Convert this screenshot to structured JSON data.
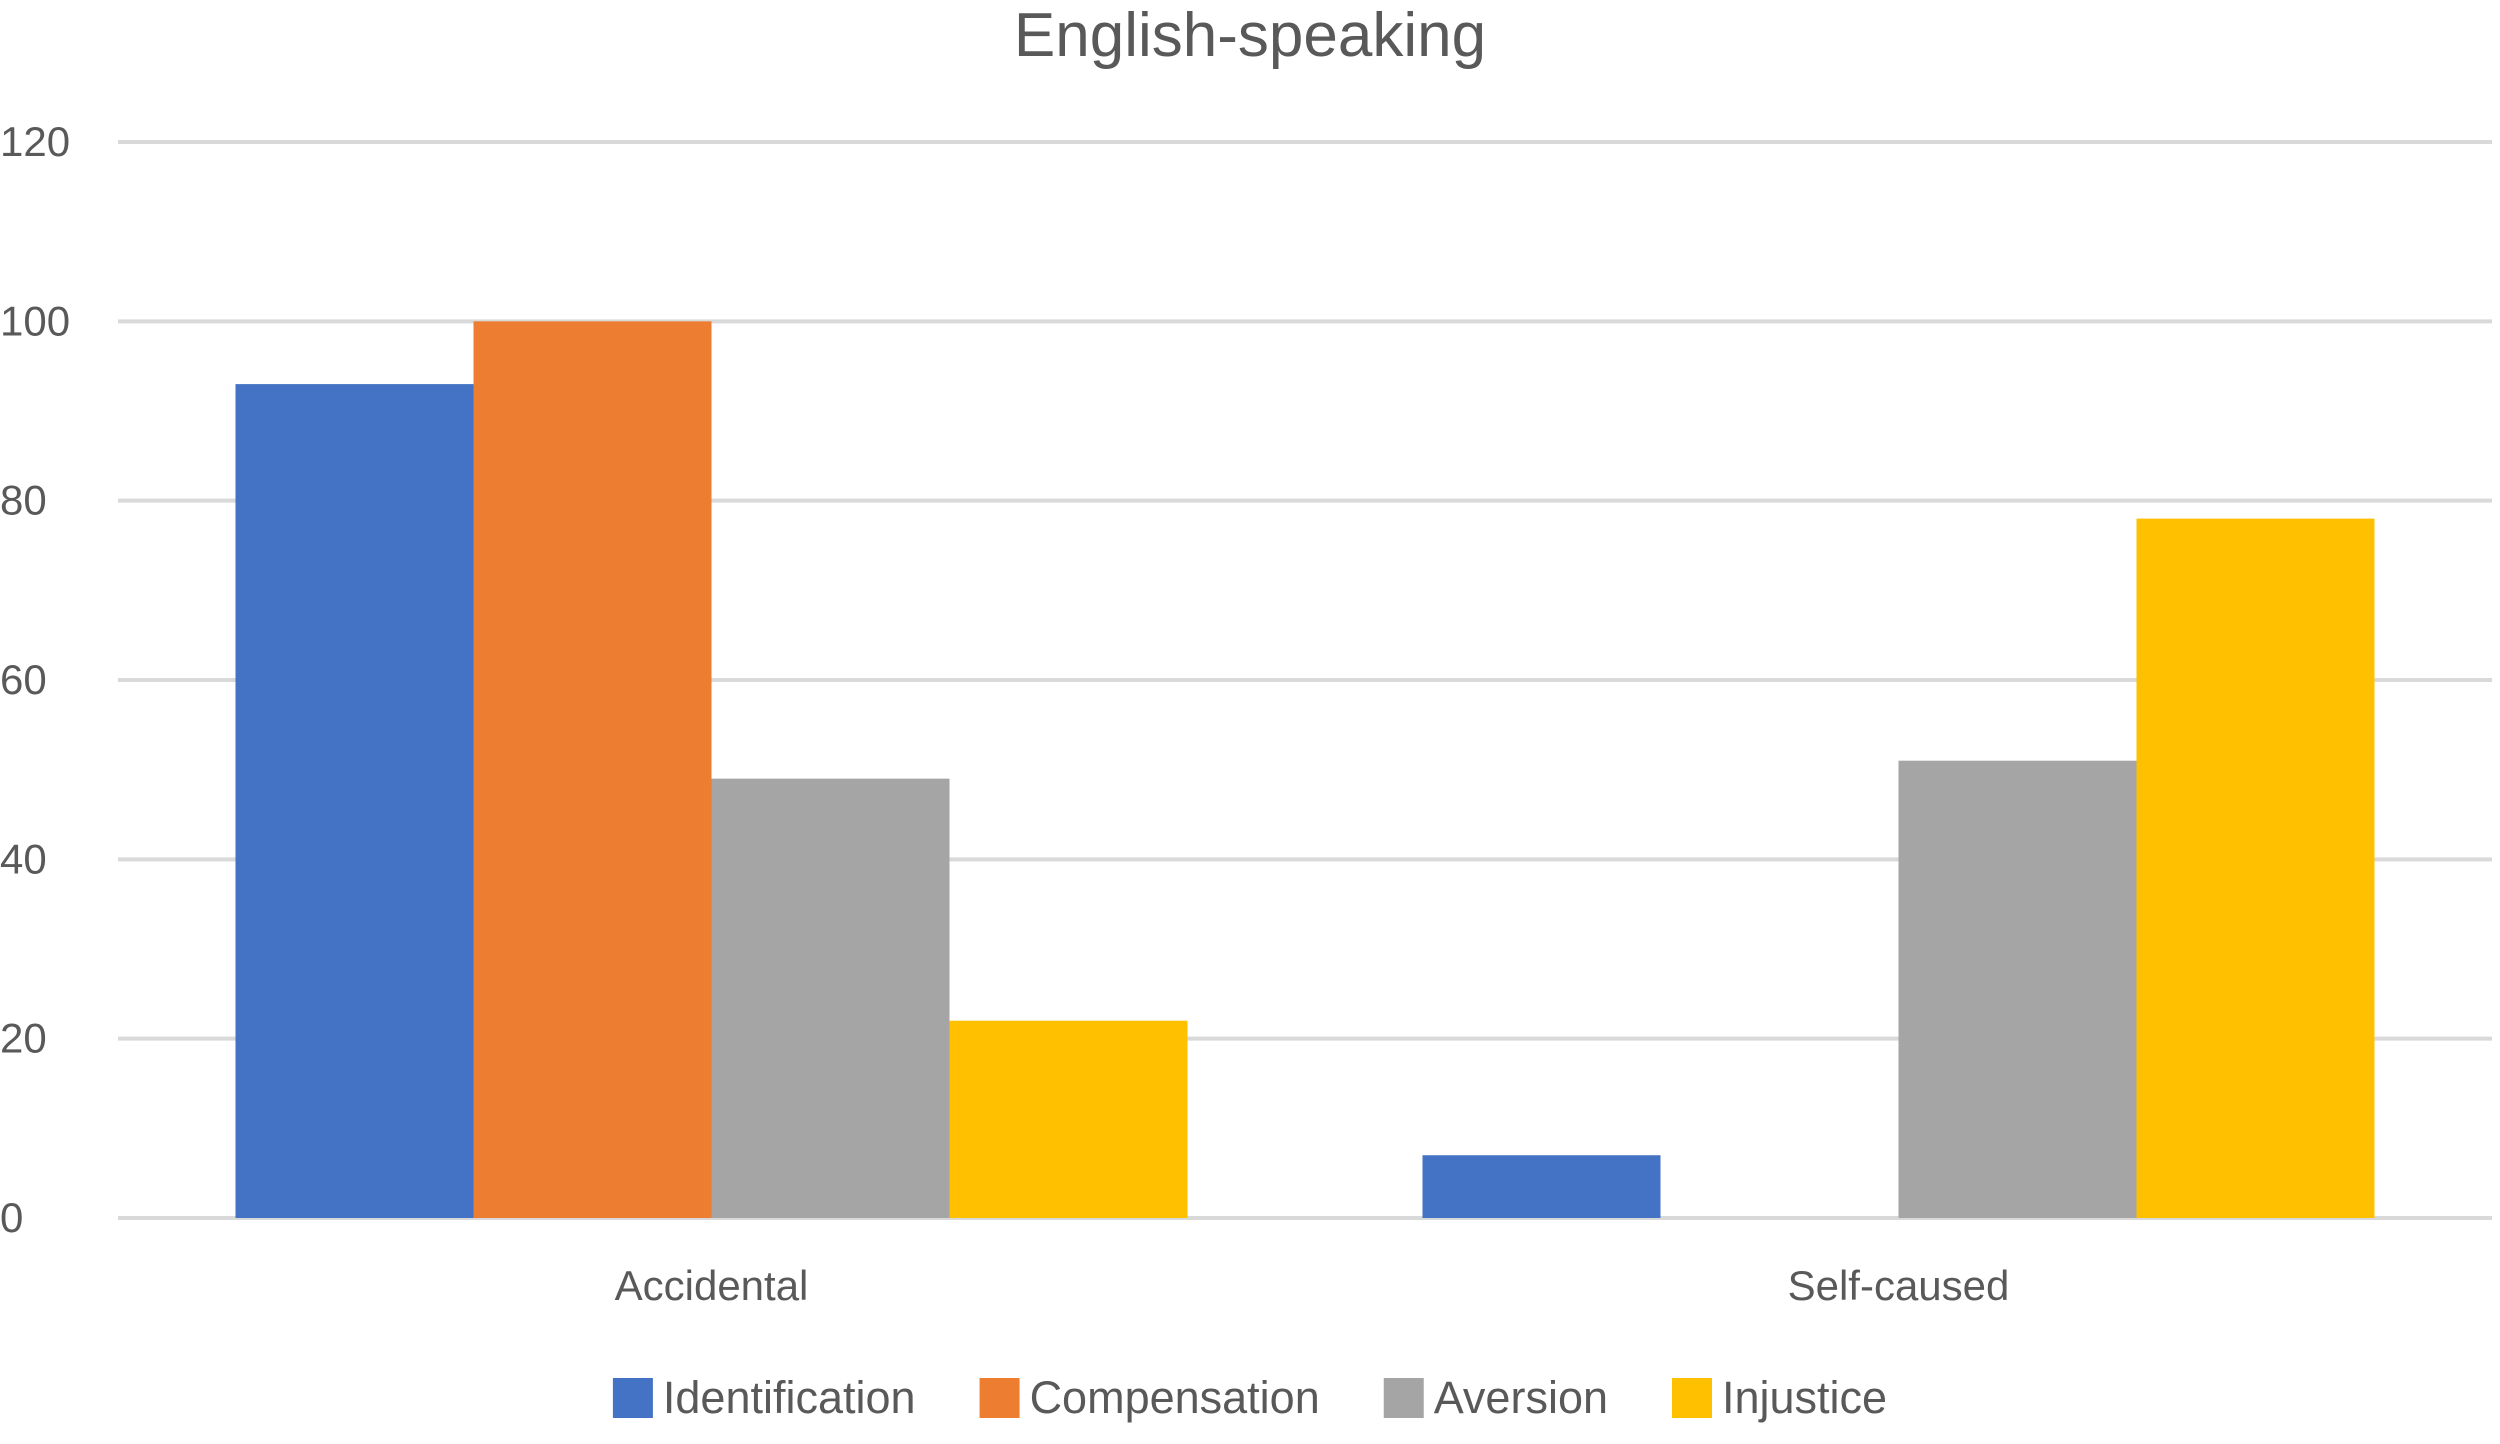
{
  "chart_data": {
    "type": "bar",
    "title": "English-speaking",
    "xlabel": "",
    "ylabel": "",
    "categories": [
      "Accidental",
      "Self-caused"
    ],
    "series": [
      {
        "name": "Identification",
        "color": "#4472C4",
        "values": [
          93,
          7
        ]
      },
      {
        "name": "Compensation",
        "color": "#ED7D31",
        "values": [
          100,
          0
        ]
      },
      {
        "name": "Aversion",
        "color": "#A5A5A5",
        "values": [
          49,
          51
        ]
      },
      {
        "name": "Injustice",
        "color": "#FFC000",
        "values": [
          22,
          78
        ]
      }
    ],
    "ylim": [
      0,
      120
    ],
    "yticks": [
      "0",
      "20",
      "40",
      "60",
      "80",
      "100",
      "120"
    ],
    "grid": true,
    "legend": "bottom"
  }
}
